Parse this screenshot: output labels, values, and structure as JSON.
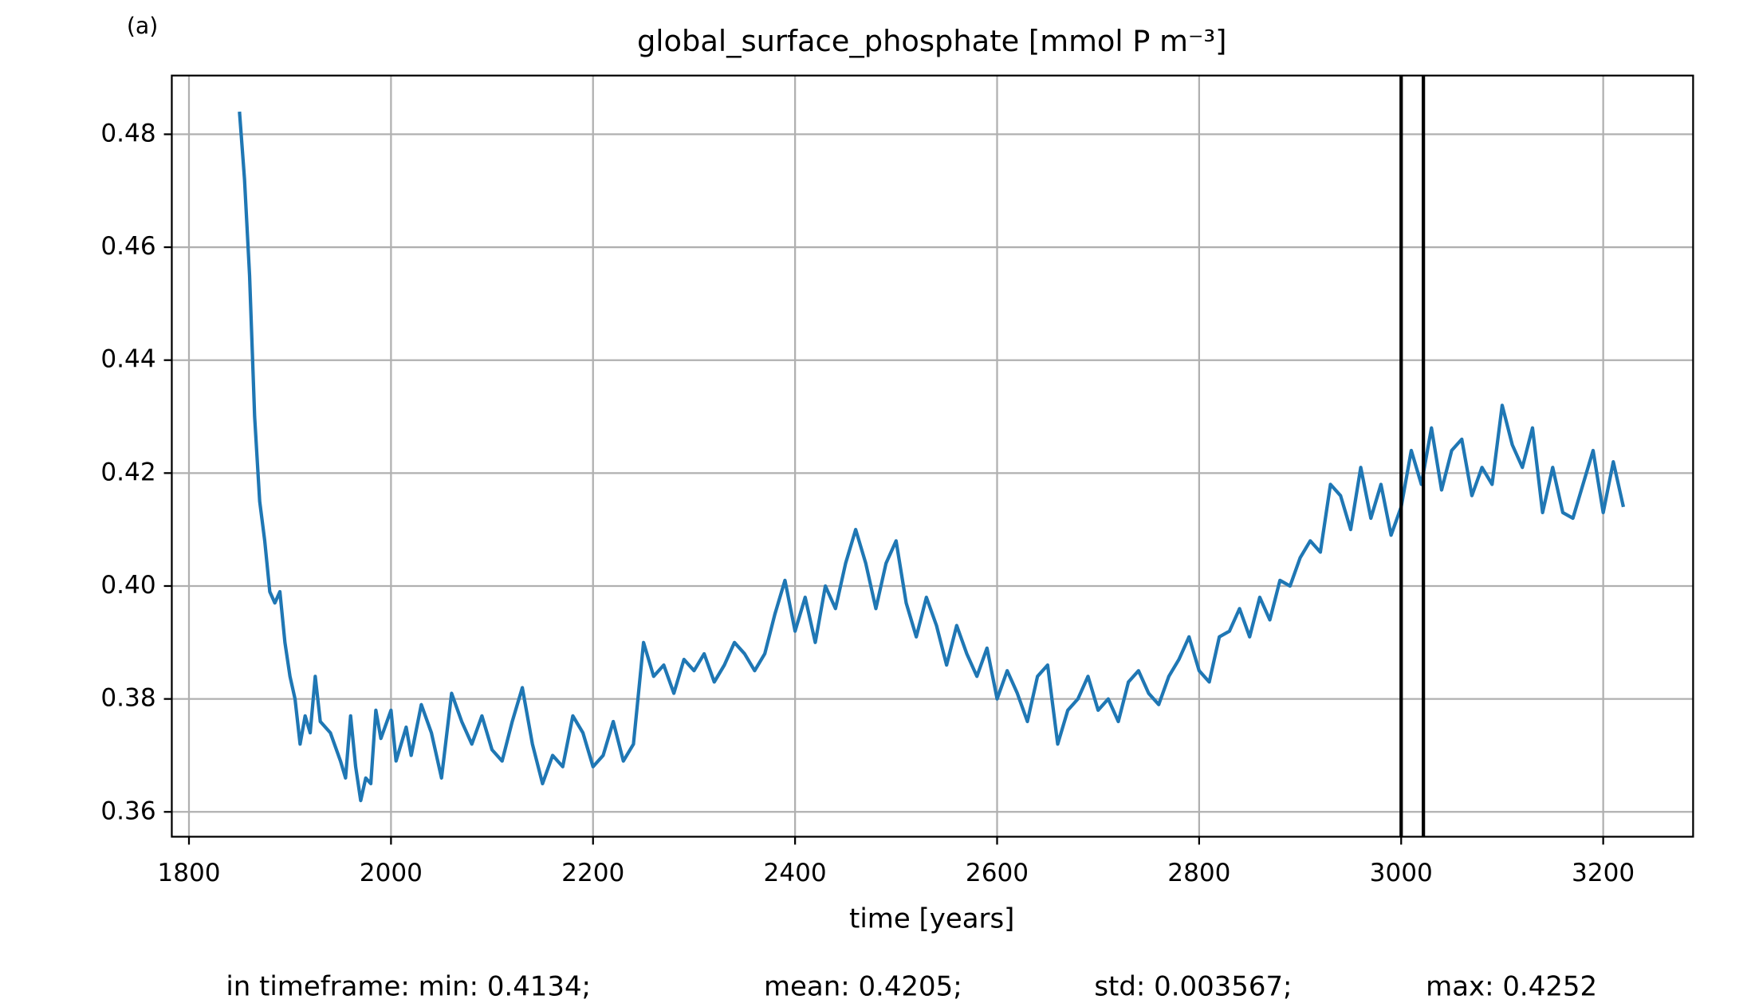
{
  "chart_data": {
    "type": "line",
    "panel_label": "(a)",
    "title": "global_surface_phosphate [mmol P m⁻³]",
    "x_label": "time [years]",
    "annotations": [
      "in timeframe: min: 0.4134;",
      "mean: 0.4205;",
      "std: 0.003567;",
      "max: 0.4252"
    ],
    "xlim": [
      1783,
      3289
    ],
    "ylim": [
      0.3556,
      0.4904
    ],
    "xticks": [
      1800,
      2000,
      2200,
      2400,
      2600,
      2800,
      3000,
      3200
    ],
    "yticks": [
      {
        "value": 0.36,
        "label": "0.36"
      },
      {
        "value": 0.38,
        "label": "0.38"
      },
      {
        "value": 0.4,
        "label": "0.40"
      },
      {
        "value": 0.42,
        "label": "0.42"
      },
      {
        "value": 0.44,
        "label": "0.44"
      },
      {
        "value": 0.46,
        "label": "0.46"
      },
      {
        "value": 0.48,
        "label": "0.48"
      }
    ],
    "grid": true,
    "vlines": [
      3000,
      3022
    ],
    "vline_color": "#000000",
    "x": [
      1850,
      1855,
      1860,
      1865,
      1870,
      1875,
      1880,
      1885,
      1890,
      1895,
      1900,
      1905,
      1910,
      1915,
      1920,
      1925,
      1930,
      1940,
      1950,
      1955,
      1960,
      1965,
      1970,
      1975,
      1980,
      1985,
      1990,
      2000,
      2005,
      2010,
      2015,
      2020,
      2030,
      2040,
      2050,
      2060,
      2070,
      2080,
      2090,
      2100,
      2110,
      2120,
      2130,
      2140,
      2150,
      2160,
      2170,
      2180,
      2190,
      2200,
      2210,
      2220,
      2230,
      2240,
      2250,
      2260,
      2270,
      2280,
      2290,
      2300,
      2310,
      2320,
      2330,
      2340,
      2350,
      2360,
      2370,
      2380,
      2390,
      2400,
      2410,
      2420,
      2430,
      2440,
      2450,
      2460,
      2470,
      2480,
      2490,
      2500,
      2510,
      2520,
      2530,
      2540,
      2550,
      2560,
      2570,
      2580,
      2590,
      2600,
      2610,
      2620,
      2630,
      2640,
      2650,
      2660,
      2670,
      2680,
      2690,
      2700,
      2710,
      2720,
      2730,
      2740,
      2750,
      2760,
      2770,
      2780,
      2790,
      2800,
      2810,
      2820,
      2830,
      2840,
      2850,
      2860,
      2870,
      2880,
      2890,
      2900,
      2910,
      2920,
      2930,
      2940,
      2950,
      2960,
      2970,
      2980,
      2990,
      3000,
      3010,
      3020,
      3030,
      3040,
      3050,
      3060,
      3070,
      3080,
      3090,
      3100,
      3110,
      3120,
      3130,
      3140,
      3150,
      3160,
      3170,
      3180,
      3190,
      3200,
      3210,
      3220
    ],
    "series": [
      {
        "name": "global_surface_phosphate",
        "color": "#1f77b4",
        "values": [
          0.484,
          0.472,
          0.455,
          0.43,
          0.415,
          0.408,
          0.399,
          0.397,
          0.399,
          0.39,
          0.384,
          0.38,
          0.372,
          0.377,
          0.374,
          0.384,
          0.376,
          0.374,
          0.369,
          0.366,
          0.377,
          0.368,
          0.362,
          0.366,
          0.365,
          0.378,
          0.373,
          0.378,
          0.369,
          0.372,
          0.375,
          0.37,
          0.379,
          0.374,
          0.366,
          0.381,
          0.376,
          0.372,
          0.377,
          0.371,
          0.369,
          0.376,
          0.382,
          0.372,
          0.365,
          0.37,
          0.368,
          0.377,
          0.374,
          0.368,
          0.37,
          0.376,
          0.369,
          0.372,
          0.39,
          0.384,
          0.386,
          0.381,
          0.387,
          0.385,
          0.388,
          0.383,
          0.386,
          0.39,
          0.388,
          0.385,
          0.388,
          0.395,
          0.401,
          0.392,
          0.398,
          0.39,
          0.4,
          0.396,
          0.404,
          0.41,
          0.404,
          0.396,
          0.404,
          0.408,
          0.397,
          0.391,
          0.398,
          0.393,
          0.386,
          0.393,
          0.388,
          0.384,
          0.389,
          0.38,
          0.385,
          0.381,
          0.376,
          0.384,
          0.386,
          0.372,
          0.378,
          0.38,
          0.384,
          0.378,
          0.38,
          0.376,
          0.383,
          0.385,
          0.381,
          0.379,
          0.384,
          0.387,
          0.391,
          0.385,
          0.383,
          0.391,
          0.392,
          0.396,
          0.391,
          0.398,
          0.394,
          0.401,
          0.4,
          0.405,
          0.408,
          0.406,
          0.418,
          0.416,
          0.41,
          0.421,
          0.412,
          0.418,
          0.409,
          0.414,
          0.424,
          0.418,
          0.428,
          0.417,
          0.424,
          0.426,
          0.416,
          0.421,
          0.418,
          0.432,
          0.425,
          0.421,
          0.428,
          0.413,
          0.421,
          0.413,
          0.412,
          0.418,
          0.424,
          0.413,
          0.422,
          0.414
        ]
      }
    ]
  }
}
